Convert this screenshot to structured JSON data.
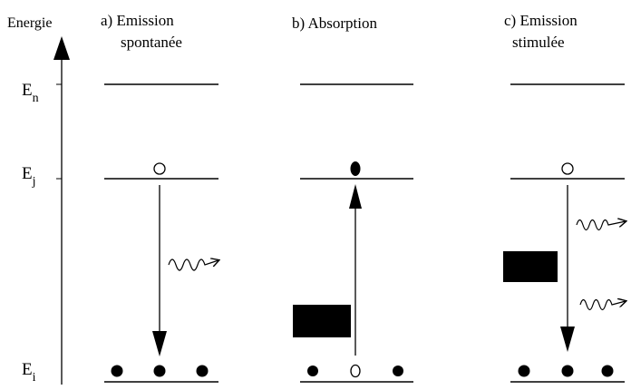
{
  "axis": {
    "title": "Energie"
  },
  "levels": [
    {
      "id": "n",
      "base": "E",
      "sub": "n"
    },
    {
      "id": "j",
      "base": "E",
      "sub": "j"
    },
    {
      "id": "i",
      "base": "E",
      "sub": "i"
    }
  ],
  "panels": [
    {
      "id": "a",
      "title_line1": "a) Emission",
      "title_line2": "spontanée",
      "atoms_i": [
        "filled",
        "filled",
        "filled"
      ],
      "atom_j": "empty",
      "arrow": "down",
      "photons": [
        "emitted"
      ]
    },
    {
      "id": "b",
      "title_line1": "b) Absorption",
      "title_line2": "",
      "atoms_i": [
        "filled",
        "empty",
        "filled"
      ],
      "atom_j": "filled",
      "arrow": "up",
      "photons": [
        "absorbed"
      ]
    },
    {
      "id": "c",
      "title_line1": "c) Emission",
      "title_line2": "stimulée",
      "atoms_i": [
        "filled",
        "filled",
        "filled"
      ],
      "atom_j": "empty",
      "arrow": "down",
      "photons": [
        "incident",
        "emitted",
        "emitted"
      ]
    }
  ]
}
